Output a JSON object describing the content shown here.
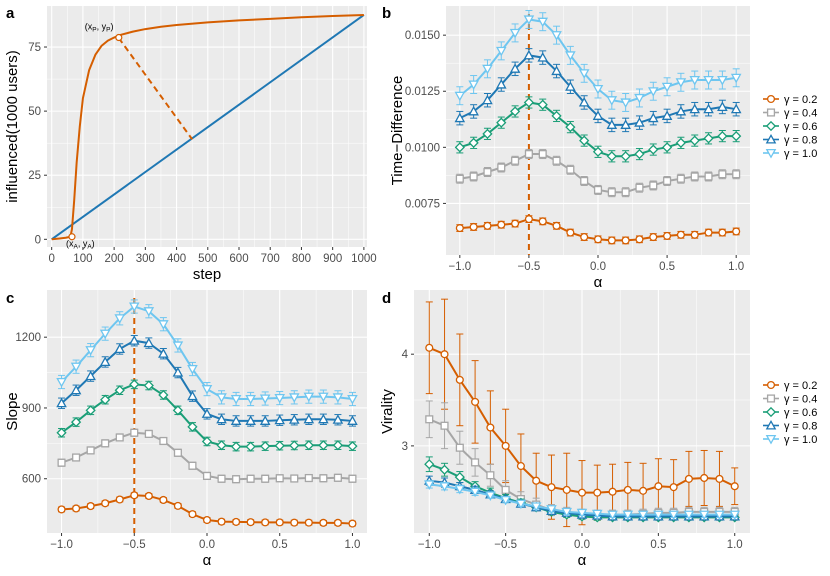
{
  "panel_labels": [
    "a",
    "b",
    "c",
    "d"
  ],
  "colors": {
    "g02": "#d55e00",
    "g04": "#a6a6a6",
    "g06": "#1a9e77",
    "g08": "#1f78b4",
    "g10": "#6ec6f0",
    "panel_a_curve": "#d55e00",
    "panel_a_line": "#1f78b4",
    "marker_line": "#d55e00"
  },
  "legend": {
    "gamma_labels": [
      "γ = 0.2",
      "γ = 0.4",
      "γ = 0.6",
      "γ = 0.8",
      "γ = 1.0"
    ]
  },
  "chart_data": [
    {
      "id": "a",
      "type": "line",
      "xlabel": "step",
      "ylabel": "influenced(1000 users)",
      "xlim": [
        -15,
        1010
      ],
      "ylim": [
        -3,
        91
      ],
      "xticks": [
        0,
        100,
        200,
        300,
        400,
        500,
        600,
        700,
        800,
        900,
        1000
      ],
      "xtick_labels": [
        "0",
        "100",
        "200",
        "300",
        "400",
        "500",
        "600",
        "700",
        "800",
        "900",
        "1000"
      ],
      "yticks": [
        0,
        25,
        50,
        75
      ],
      "ytick_labels": [
        "0",
        "25",
        "50",
        "75"
      ],
      "series": [
        {
          "name": "influence curve",
          "x": [
            0,
            25,
            45,
            60,
            65,
            72,
            80,
            90,
            100,
            120,
            140,
            160,
            180,
            200,
            220,
            260,
            300,
            350,
            400,
            500,
            600,
            700,
            800,
            900,
            1000
          ],
          "y": [
            0,
            0.3,
            0.6,
            1.0,
            4,
            15,
            30,
            44,
            55,
            66,
            72,
            75.5,
            77.5,
            78.7,
            79.7,
            81.0,
            82.0,
            82.9,
            83.6,
            84.6,
            85.4,
            86.0,
            86.6,
            87.1,
            87.5
          ]
        },
        {
          "name": "linear reference",
          "x": [
            0,
            1000
          ],
          "y": [
            0,
            87.5
          ]
        }
      ],
      "dashed_segment": {
        "x": [
          215,
          450
        ],
        "y": [
          78.5,
          39
        ]
      },
      "annotations": [
        {
          "label": "(x",
          "sub": "P",
          "label2": ", y",
          "sub2": "P",
          "close": ")",
          "x": 215,
          "y": 79.5
        },
        {
          "label": "(x",
          "sub": "A",
          "label2": ", y",
          "sub2": "A",
          "close": ")",
          "x": 65,
          "y": 1.0
        }
      ]
    },
    {
      "id": "b",
      "type": "line",
      "xlabel": "α",
      "ylabel": "Time−Difference",
      "xlim": [
        -1.1,
        1.1
      ],
      "ylim": [
        0.0052,
        0.0163
      ],
      "vline": -0.5,
      "x": [
        -1.0,
        -0.9,
        -0.8,
        -0.7,
        -0.6,
        -0.5,
        -0.4,
        -0.3,
        -0.2,
        -0.1,
        0.0,
        0.1,
        0.2,
        0.3,
        0.4,
        0.5,
        0.6,
        0.7,
        0.8,
        0.9,
        1.0
      ],
      "xticks": [
        -1.0,
        -0.5,
        0.0,
        0.5,
        1.0
      ],
      "xtick_labels": [
        "−1.0",
        "−0.5",
        "0.0",
        "0.5",
        "1.0"
      ],
      "yticks": [
        0.0075,
        0.01,
        0.0125,
        0.015
      ],
      "ytick_labels": [
        "0.0075",
        "0.0100",
        "0.0125",
        "0.0150"
      ],
      "series": [
        {
          "name": "γ = 0.2",
          "values": [
            0.0064,
            0.00645,
            0.0065,
            0.00655,
            0.0066,
            0.0068,
            0.0067,
            0.0065,
            0.0062,
            0.006,
            0.0059,
            0.00585,
            0.00585,
            0.0059,
            0.006,
            0.00605,
            0.0061,
            0.0061,
            0.0062,
            0.0062,
            0.00625
          ],
          "err": [
            0.00015,
            0.00015,
            0.00015,
            0.00015,
            0.00015,
            0.00015,
            0.00015,
            0.00015,
            0.00015,
            0.00015,
            0.00015,
            0.00015,
            0.00015,
            0.00015,
            0.00015,
            0.00015,
            0.00015,
            0.00015,
            0.00015,
            0.00015,
            0.00015
          ]
        },
        {
          "name": "γ = 0.4",
          "values": [
            0.0086,
            0.0087,
            0.0089,
            0.0091,
            0.0094,
            0.0097,
            0.0097,
            0.0094,
            0.009,
            0.0085,
            0.0081,
            0.008,
            0.008,
            0.0082,
            0.0083,
            0.0085,
            0.0086,
            0.0087,
            0.0087,
            0.0088,
            0.0088
          ],
          "err": [
            0.0002,
            0.0002,
            0.0002,
            0.0002,
            0.0002,
            0.0002,
            0.0002,
            0.0002,
            0.0002,
            0.0002,
            0.0002,
            0.0002,
            0.0002,
            0.0002,
            0.0002,
            0.0002,
            0.0002,
            0.0002,
            0.0002,
            0.0002,
            0.0002
          ]
        },
        {
          "name": "γ = 0.6",
          "values": [
            0.01,
            0.0102,
            0.0106,
            0.0111,
            0.0116,
            0.012,
            0.0119,
            0.0114,
            0.0109,
            0.0103,
            0.0098,
            0.0096,
            0.0096,
            0.0097,
            0.0099,
            0.01,
            0.0102,
            0.0103,
            0.0104,
            0.0105,
            0.0105
          ],
          "err": [
            0.00025,
            0.00025,
            0.00025,
            0.00025,
            0.00025,
            0.00025,
            0.00025,
            0.00025,
            0.00025,
            0.00025,
            0.00025,
            0.00025,
            0.00025,
            0.00025,
            0.00025,
            0.00025,
            0.00025,
            0.00025,
            0.00025,
            0.00025,
            0.00025
          ]
        },
        {
          "name": "γ = 0.8",
          "values": [
            0.0113,
            0.0116,
            0.0121,
            0.0128,
            0.0135,
            0.0141,
            0.014,
            0.0134,
            0.0127,
            0.012,
            0.0114,
            0.011,
            0.011,
            0.0111,
            0.0113,
            0.0114,
            0.0116,
            0.0117,
            0.0117,
            0.0118,
            0.0117
          ],
          "err": [
            0.0003,
            0.0003,
            0.0003,
            0.0003,
            0.0003,
            0.0003,
            0.0003,
            0.0003,
            0.0003,
            0.0003,
            0.0003,
            0.0003,
            0.0003,
            0.0003,
            0.0003,
            0.0003,
            0.0003,
            0.0003,
            0.0003,
            0.0003,
            0.0003
          ]
        },
        {
          "name": "γ = 1.0",
          "values": [
            0.0123,
            0.0128,
            0.0135,
            0.0143,
            0.0151,
            0.0157,
            0.0156,
            0.015,
            0.0141,
            0.0133,
            0.0126,
            0.0121,
            0.012,
            0.0122,
            0.0125,
            0.0127,
            0.0129,
            0.013,
            0.013,
            0.013,
            0.0131
          ],
          "err": [
            0.0004,
            0.0004,
            0.0004,
            0.0004,
            0.0004,
            0.0004,
            0.0004,
            0.0004,
            0.0004,
            0.0004,
            0.0004,
            0.0004,
            0.0004,
            0.0004,
            0.0004,
            0.0004,
            0.0004,
            0.0004,
            0.0004,
            0.0004,
            0.0004
          ]
        }
      ]
    },
    {
      "id": "c",
      "type": "line",
      "xlabel": "α",
      "ylabel": "Slope",
      "xlim": [
        -1.1,
        1.1
      ],
      "ylim": [
        370,
        1400
      ],
      "vline": -0.5,
      "x": [
        -1.0,
        -0.9,
        -0.8,
        -0.7,
        -0.6,
        -0.5,
        -0.4,
        -0.3,
        -0.2,
        -0.1,
        0.0,
        0.1,
        0.2,
        0.3,
        0.4,
        0.5,
        0.6,
        0.7,
        0.8,
        0.9,
        1.0
      ],
      "xticks": [
        -1.0,
        -0.5,
        0.0,
        0.5,
        1.0
      ],
      "xtick_labels": [
        "−1.0",
        "−0.5",
        "0.0",
        "0.5",
        "1.0"
      ],
      "yticks": [
        600,
        900,
        1200
      ],
      "ytick_labels": [
        "600",
        "900",
        "1200"
      ],
      "series": [
        {
          "name": "γ = 0.2",
          "values": [
            470,
            474,
            484,
            496,
            512,
            530,
            527,
            510,
            485,
            450,
            425,
            418,
            417,
            416,
            415,
            415,
            414,
            414,
            413,
            413,
            410
          ],
          "err": [
            10,
            10,
            10,
            10,
            10,
            10,
            10,
            10,
            10,
            10,
            10,
            10,
            10,
            10,
            10,
            10,
            10,
            10,
            10,
            10,
            10
          ]
        },
        {
          "name": "γ = 0.4",
          "values": [
            668,
            690,
            720,
            750,
            775,
            795,
            790,
            760,
            710,
            655,
            612,
            600,
            598,
            600,
            600,
            602,
            601,
            603,
            602,
            604,
            600
          ],
          "err": [
            15,
            15,
            15,
            15,
            15,
            15,
            15,
            15,
            15,
            15,
            15,
            15,
            15,
            15,
            15,
            15,
            15,
            15,
            15,
            15,
            15
          ]
        },
        {
          "name": "γ = 0.6",
          "values": [
            795,
            840,
            890,
            935,
            975,
            1000,
            995,
            955,
            890,
            820,
            758,
            742,
            736,
            736,
            738,
            740,
            741,
            742,
            742,
            742,
            738
          ],
          "err": [
            18,
            18,
            18,
            18,
            18,
            18,
            18,
            18,
            18,
            18,
            18,
            18,
            18,
            18,
            18,
            18,
            18,
            18,
            18,
            18,
            18
          ]
        },
        {
          "name": "γ = 0.8",
          "values": [
            920,
            975,
            1035,
            1095,
            1150,
            1185,
            1175,
            1130,
            1050,
            950,
            875,
            852,
            845,
            845,
            845,
            848,
            850,
            852,
            852,
            850,
            845
          ],
          "err": [
            22,
            22,
            22,
            22,
            22,
            22,
            22,
            22,
            22,
            22,
            22,
            22,
            22,
            22,
            22,
            22,
            22,
            22,
            22,
            22,
            22
          ]
        },
        {
          "name": "γ = 1.0",
          "values": [
            1010,
            1075,
            1145,
            1215,
            1280,
            1330,
            1310,
            1255,
            1165,
            1065,
            980,
            945,
            938,
            938,
            940,
            942,
            945,
            948,
            948,
            945,
            938
          ],
          "err": [
            28,
            28,
            28,
            28,
            28,
            28,
            28,
            28,
            28,
            28,
            28,
            28,
            28,
            28,
            28,
            28,
            28,
            28,
            28,
            28,
            28
          ]
        }
      ]
    },
    {
      "id": "d",
      "type": "line",
      "xlabel": "α",
      "ylabel": "Virality",
      "xlim": [
        -1.1,
        1.1
      ],
      "ylim": [
        2.05,
        4.7
      ],
      "x": [
        -1.0,
        -0.9,
        -0.8,
        -0.7,
        -0.6,
        -0.5,
        -0.4,
        -0.3,
        -0.2,
        -0.1,
        0.0,
        0.1,
        0.2,
        0.3,
        0.4,
        0.5,
        0.6,
        0.7,
        0.8,
        0.9,
        1.0
      ],
      "xticks": [
        -1.0,
        -0.5,
        0.0,
        0.5,
        1.0
      ],
      "xtick_labels": [
        "−1.0",
        "−0.5",
        "0.0",
        "0.5",
        "1.0"
      ],
      "yticks": [
        3,
        4
      ],
      "ytick_labels": [
        "3",
        "4"
      ],
      "series": [
        {
          "name": "γ = 0.2",
          "values": [
            4.07,
            4.0,
            3.72,
            3.48,
            3.2,
            3.0,
            2.78,
            2.62,
            2.55,
            2.52,
            2.49,
            2.49,
            2.5,
            2.52,
            2.51,
            2.56,
            2.55,
            2.64,
            2.65,
            2.64,
            2.56
          ],
          "err": [
            0.5,
            0.6,
            0.5,
            0.45,
            0.4,
            0.4,
            0.35,
            0.3,
            0.35,
            0.4,
            0.35,
            0.3,
            0.3,
            0.3,
            0.3,
            0.3,
            0.3,
            0.3,
            0.3,
            0.3,
            0.2
          ]
        },
        {
          "name": "γ = 0.4",
          "values": [
            3.29,
            3.22,
            2.98,
            2.82,
            2.68,
            2.52,
            2.42,
            2.36,
            2.3,
            2.28,
            2.26,
            2.25,
            2.25,
            2.25,
            2.26,
            2.27,
            2.27,
            2.28,
            2.28,
            2.28,
            2.28
          ],
          "err": [
            0.2,
            0.25,
            0.18,
            0.15,
            0.12,
            0.1,
            0.08,
            0.07,
            0.06,
            0.05,
            0.05,
            0.05,
            0.05,
            0.05,
            0.05,
            0.05,
            0.05,
            0.05,
            0.05,
            0.05,
            0.05
          ]
        },
        {
          "name": "γ = 0.6",
          "values": [
            2.8,
            2.74,
            2.66,
            2.56,
            2.49,
            2.43,
            2.38,
            2.33,
            2.28,
            2.25,
            2.23,
            2.22,
            2.22,
            2.22,
            2.22,
            2.22,
            2.22,
            2.22,
            2.22,
            2.22,
            2.22
          ],
          "err": [
            0.08,
            0.07,
            0.06,
            0.05,
            0.05,
            0.04,
            0.04,
            0.03,
            0.03,
            0.03,
            0.03,
            0.03,
            0.03,
            0.03,
            0.03,
            0.03,
            0.03,
            0.03,
            0.03,
            0.03,
            0.03
          ]
        },
        {
          "name": "γ = 0.8",
          "values": [
            2.62,
            2.6,
            2.56,
            2.52,
            2.47,
            2.42,
            2.37,
            2.33,
            2.29,
            2.27,
            2.25,
            2.24,
            2.23,
            2.23,
            2.23,
            2.23,
            2.23,
            2.23,
            2.23,
            2.23,
            2.23
          ],
          "err": [
            0.05,
            0.05,
            0.04,
            0.04,
            0.04,
            0.03,
            0.03,
            0.03,
            0.03,
            0.03,
            0.03,
            0.03,
            0.03,
            0.03,
            0.03,
            0.03,
            0.03,
            0.03,
            0.03,
            0.03,
            0.03
          ]
        },
        {
          "name": "γ = 1.0",
          "values": [
            2.58,
            2.56,
            2.53,
            2.5,
            2.46,
            2.41,
            2.37,
            2.34,
            2.31,
            2.28,
            2.27,
            2.26,
            2.25,
            2.25,
            2.25,
            2.25,
            2.25,
            2.25,
            2.25,
            2.25,
            2.25
          ],
          "err": [
            0.04,
            0.04,
            0.04,
            0.04,
            0.03,
            0.03,
            0.03,
            0.03,
            0.03,
            0.03,
            0.03,
            0.03,
            0.03,
            0.03,
            0.03,
            0.03,
            0.03,
            0.03,
            0.03,
            0.03,
            0.03
          ]
        }
      ]
    }
  ]
}
